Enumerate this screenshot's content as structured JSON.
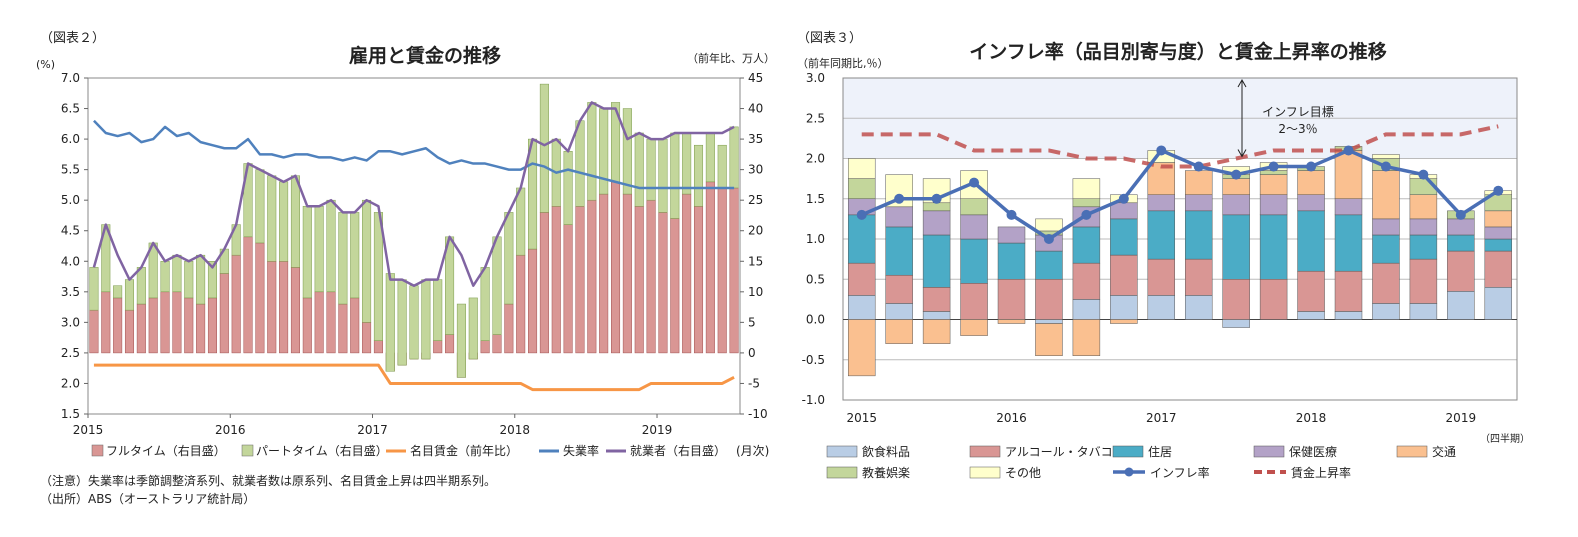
{
  "chart_data": [
    {
      "type": "bar",
      "figure_label": "（図表２）",
      "title": "雇用と賃金の推移",
      "ylabel_left": "(%)",
      "ylabel_right": "（前年比、万人）",
      "xlabel": "(月次)",
      "ylim_left": [
        1.5,
        7.0
      ],
      "ylim_right": [
        -10,
        45
      ],
      "left_ticks": [
        "1.5",
        "2.0",
        "2.5",
        "3.0",
        "3.5",
        "4.0",
        "4.5",
        "5.0",
        "5.5",
        "6.0",
        "6.5",
        "7.0"
      ],
      "right_ticks": [
        "-10",
        "-5",
        "0",
        "5",
        "10",
        "15",
        "20",
        "25",
        "30",
        "35",
        "40",
        "45"
      ],
      "x_labels": [
        {
          "label": "2015",
          "index": 0
        },
        {
          "label": "2016",
          "index": 12
        },
        {
          "label": "2017",
          "index": 24
        },
        {
          "label": "2018",
          "index": 36
        },
        {
          "label": "2019",
          "index": 48
        }
      ],
      "months": 55,
      "series": [
        {
          "name": "フルタイム（右目盛）",
          "kind": "bar",
          "color": "#d99694",
          "values": [
            7,
            10,
            9,
            7,
            8,
            9,
            10,
            10,
            9,
            8,
            9,
            13,
            16,
            19,
            18,
            15,
            15,
            14,
            9,
            10,
            10,
            8,
            9,
            5,
            2,
            -3,
            -2,
            -1,
            -1,
            2,
            3,
            -4,
            -1,
            2,
            3,
            8,
            16,
            17,
            23,
            24,
            21,
            24,
            25,
            26,
            28,
            26,
            24,
            25,
            23,
            22,
            26,
            24,
            28,
            27,
            27
          ]
        },
        {
          "name": "パートタイム（右目盛）",
          "kind": "bar",
          "color": "#c3d69b",
          "values": [
            7,
            11,
            2,
            5,
            6,
            9,
            5,
            6,
            6,
            8,
            6,
            4,
            5,
            12,
            12,
            14,
            13,
            15,
            15,
            14,
            15,
            15,
            14,
            20,
            21,
            16,
            14,
            12,
            13,
            10,
            16,
            12,
            10,
            12,
            16,
            15,
            11,
            18,
            21,
            11,
            12,
            14,
            16,
            14,
            13,
            14,
            12,
            10,
            12,
            14,
            10,
            10,
            8,
            7,
            10
          ]
        },
        {
          "name": "名目賃金（前年比）",
          "kind": "line",
          "color": "#f79646",
          "values": [
            2.3,
            2.3,
            2.3,
            2.3,
            2.3,
            2.3,
            2.3,
            2.3,
            2.3,
            2.3,
            2.3,
            2.3,
            2.3,
            2.3,
            2.3,
            2.3,
            2.3,
            2.3,
            2.3,
            2.3,
            2.3,
            2.3,
            2.3,
            2.3,
            2.3,
            2.0,
            2.0,
            2.0,
            2.0,
            2.0,
            2.0,
            2.0,
            2.0,
            2.0,
            2.0,
            2.0,
            2.0,
            1.9,
            1.9,
            1.9,
            1.9,
            1.9,
            1.9,
            1.9,
            1.9,
            1.9,
            1.9,
            2.0,
            2.0,
            2.0,
            2.0,
            2.0,
            2.0,
            2.0,
            2.1
          ]
        },
        {
          "name": "失業率",
          "kind": "line",
          "color": "#4f81bd",
          "values": [
            6.3,
            6.1,
            6.05,
            6.1,
            5.95,
            6.0,
            6.2,
            6.05,
            6.1,
            5.95,
            5.9,
            5.85,
            5.85,
            6.0,
            5.75,
            5.75,
            5.7,
            5.75,
            5.75,
            5.7,
            5.7,
            5.65,
            5.7,
            5.65,
            5.8,
            5.8,
            5.75,
            5.8,
            5.85,
            5.7,
            5.6,
            5.65,
            5.6,
            5.6,
            5.55,
            5.5,
            5.5,
            5.6,
            5.55,
            5.45,
            5.5,
            5.45,
            5.4,
            5.35,
            5.3,
            5.25,
            5.2,
            5.2,
            5.2,
            5.2,
            5.2,
            5.2,
            5.2,
            5.2,
            5.2
          ]
        },
        {
          "name": "就業者（右目盛）",
          "kind": "line",
          "color": "#8064a2",
          "values": [
            14,
            21,
            16,
            12,
            14,
            18,
            15,
            16,
            15,
            16,
            14,
            17,
            21,
            31,
            30,
            29,
            28,
            29,
            24,
            24,
            25,
            23,
            23,
            25,
            24,
            12,
            12,
            11,
            12,
            12,
            19,
            16,
            11,
            14,
            19,
            23,
            27,
            35,
            34,
            35,
            33,
            38,
            41,
            40,
            40,
            35,
            36,
            35,
            35,
            36,
            36,
            36,
            36,
            36,
            37
          ]
        }
      ],
      "legend": [
        "フルタイム（右目盛）",
        "パートタイム（右目盛）",
        "名目賃金（前年比）",
        "失業率",
        "就業者（右目盛）",
        "(月次)"
      ]
    },
    {
      "type": "bar",
      "figure_label": "（図表３）",
      "title": "インフレ率（品目別寄与度）と賃金上昇率の推移",
      "ylabel": "（前年同期比,％）",
      "xlabel": "（四半期）",
      "ylim": [
        -1.0,
        3.0
      ],
      "ticks": [
        "-1.0",
        "-0.5",
        "0.0",
        "0.5",
        "1.0",
        "1.5",
        "2.0",
        "2.5",
        "3.0"
      ],
      "x_labels": [
        {
          "label": "2015",
          "index": 0
        },
        {
          "label": "2016",
          "index": 4
        },
        {
          "label": "2017",
          "index": 8
        },
        {
          "label": "2018",
          "index": 12
        },
        {
          "label": "2019",
          "index": 16
        }
      ],
      "target_band": [
        2.0,
        3.0
      ],
      "annotation": [
        "インフレ目標",
        "2～3％"
      ],
      "stack_series": [
        {
          "name": "飲食料品",
          "color": "#b9cde5",
          "values": [
            0.3,
            0.2,
            0.1,
            0.0,
            0.0,
            -0.05,
            0.25,
            0.3,
            0.3,
            0.3,
            -0.1,
            0.0,
            0.1,
            0.1,
            0.2,
            0.2,
            0.35,
            0.4
          ]
        },
        {
          "name": "アルコール・タバコ",
          "color": "#d99694",
          "values": [
            0.4,
            0.35,
            0.3,
            0.45,
            0.5,
            0.5,
            0.45,
            0.5,
            0.45,
            0.45,
            0.5,
            0.5,
            0.5,
            0.5,
            0.5,
            0.55,
            0.5,
            0.45
          ]
        },
        {
          "name": "住居",
          "color": "#4bacc6",
          "values": [
            0.6,
            0.6,
            0.65,
            0.55,
            0.45,
            0.35,
            0.45,
            0.45,
            0.6,
            0.6,
            0.8,
            0.8,
            0.75,
            0.7,
            0.35,
            0.3,
            0.2,
            0.15
          ]
        },
        {
          "name": "保健医療",
          "color": "#b3a2c7",
          "values": [
            0.2,
            0.25,
            0.3,
            0.3,
            0.2,
            0.2,
            0.25,
            0.2,
            0.2,
            0.2,
            0.25,
            0.25,
            0.2,
            0.2,
            0.2,
            0.2,
            0.2,
            0.15
          ]
        },
        {
          "name": "交通",
          "color": "#fac090",
          "values": [
            -0.7,
            -0.3,
            -0.3,
            -0.2,
            -0.05,
            -0.4,
            -0.45,
            -0.05,
            0.4,
            0.3,
            0.2,
            0.25,
            0.3,
            0.6,
            0.6,
            0.3,
            0.0,
            0.2
          ]
        },
        {
          "name": "教養娯楽",
          "color": "#c3d69b",
          "values": [
            0.25,
            0.0,
            0.1,
            0.2,
            0.0,
            0.05,
            0.1,
            0.0,
            0.0,
            0.0,
            0.05,
            0.05,
            0.05,
            0.05,
            0.15,
            0.2,
            0.1,
            0.2
          ]
        },
        {
          "name": "その他",
          "color": "#ffffcc",
          "values": [
            0.25,
            0.4,
            0.3,
            0.35,
            0.0,
            0.15,
            0.25,
            0.1,
            0.15,
            0.0,
            0.1,
            0.1,
            0.0,
            0.0,
            0.05,
            0.05,
            0.0,
            0.05
          ]
        }
      ],
      "lines": [
        {
          "name": "インフレ率",
          "color": "#4a6fb5",
          "values": [
            1.3,
            1.5,
            1.5,
            1.7,
            1.3,
            1.0,
            1.3,
            1.5,
            2.1,
            1.9,
            1.8,
            1.9,
            1.9,
            2.1,
            1.9,
            1.8,
            1.3,
            1.6
          ]
        },
        {
          "name": "賃金上昇率",
          "color": "#c0504d",
          "values": [
            2.3,
            2.3,
            2.3,
            2.1,
            2.1,
            2.1,
            2.0,
            2.0,
            1.9,
            1.9,
            2.0,
            2.1,
            2.1,
            2.1,
            2.3,
            2.3,
            2.3,
            2.4
          ]
        }
      ],
      "legend": [
        "飲食料品",
        "アルコール・タバコ",
        "住居",
        "保健医療",
        "交通",
        "教養娯楽",
        "その他",
        "インフレ率",
        "賃金上昇率"
      ]
    }
  ],
  "chart_left": {
    "note": "（注意）失業率は季節調整済系列、就業者数は原系列、名目賃金上昇は四半期系列。",
    "source": "（出所）ABS（オーストラリア統計局）"
  }
}
